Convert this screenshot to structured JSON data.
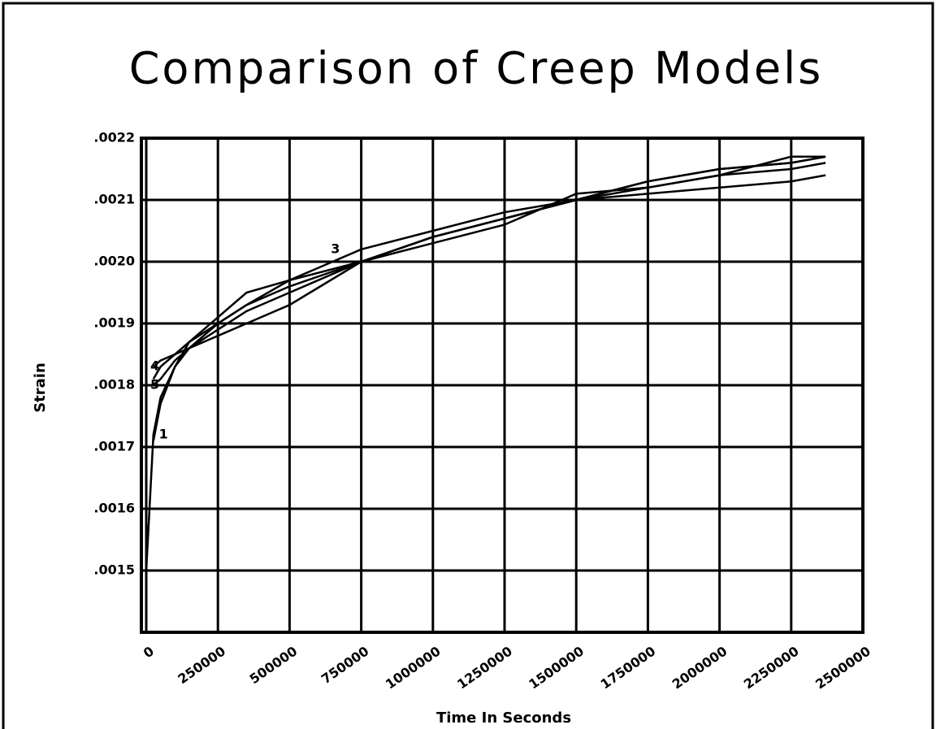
{
  "chart_data": {
    "type": "line",
    "title": "Comparison of Creep Models",
    "xlabel": "Time In Seconds",
    "ylabel": "Strain",
    "x": [
      0,
      25000,
      50000,
      100000,
      150000,
      250000,
      350000,
      500000,
      750000,
      1000000,
      1250000,
      1500000,
      1750000,
      2000000,
      2250000,
      2370000
    ],
    "series": [
      {
        "color": "#000000",
        "values": [
          0.0015,
          0.00172,
          0.00178,
          0.00183,
          0.00187,
          0.00191,
          0.00195,
          0.00197,
          0.002,
          0.00203,
          0.00206,
          0.00211,
          0.00212,
          0.00214,
          0.00217,
          0.00217
        ]
      },
      {
        "color": "#000000",
        "values": [
          null,
          0.00171,
          0.00177,
          0.00183,
          0.00186,
          0.0019,
          0.00193,
          0.00196,
          0.002,
          0.00204,
          0.00207,
          0.0021,
          0.00213,
          0.00215,
          0.00216,
          0.00217
        ]
      },
      {
        "color": "#000000",
        "values": [
          null,
          0.00181,
          0.00183,
          0.00185,
          0.00187,
          0.0019,
          0.00193,
          0.00197,
          0.00202,
          0.00205,
          0.00208,
          0.0021,
          0.00211,
          0.00212,
          0.00213,
          0.00214
        ]
      },
      {
        "color": "#000000",
        "values": [
          null,
          0.00183,
          0.00184,
          0.00185,
          0.00186,
          0.00188,
          0.0019,
          0.00193,
          0.002,
          0.00204,
          0.00207,
          0.0021,
          0.00213,
          0.00215,
          0.00216,
          0.00217
        ]
      },
      {
        "color": "#000000",
        "values": [
          null,
          0.0018,
          0.00181,
          0.00184,
          0.00186,
          0.00189,
          0.00192,
          0.00195,
          0.002,
          0.00204,
          0.00207,
          0.0021,
          0.00212,
          0.00214,
          0.00215,
          0.00216
        ]
      }
    ],
    "annotations": [
      {
        "text": "1",
        "x": 60000,
        "y": 0.00172
      },
      {
        "text": "3",
        "x": 660000,
        "y": 0.00202
      },
      {
        "text": "4",
        "x": 30000,
        "y": 0.00183
      },
      {
        "text": "5",
        "x": 30000,
        "y": 0.0018
      }
    ],
    "xlim": [
      0,
      2500000
    ],
    "xticks": [
      0,
      250000,
      500000,
      750000,
      1000000,
      1250000,
      1500000,
      1750000,
      2000000,
      2250000,
      2500000
    ],
    "ylim": [
      0.0014,
      0.0022
    ],
    "yticks": [
      {
        "value": 0.0015,
        "label": ".0015"
      },
      {
        "value": 0.0016,
        "label": ".0016"
      },
      {
        "value": 0.0017,
        "label": ".0017"
      },
      {
        "value": 0.0018,
        "label": ".0018"
      },
      {
        "value": 0.0019,
        "label": ".0019"
      },
      {
        "value": 0.002,
        "label": ".0020"
      },
      {
        "value": 0.0021,
        "label": ".0021"
      },
      {
        "value": 0.0022,
        "label": ".0022"
      }
    ],
    "grid": true
  }
}
